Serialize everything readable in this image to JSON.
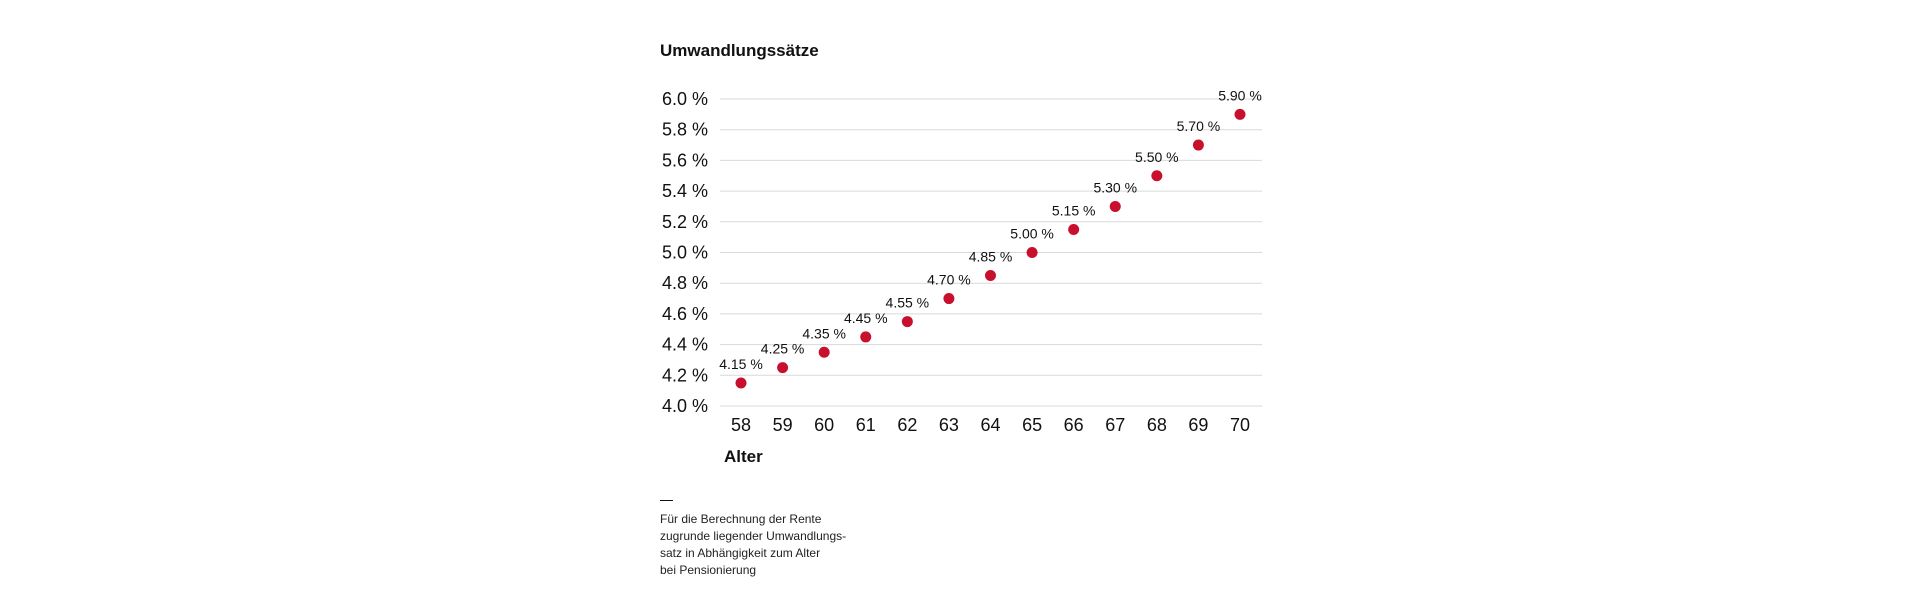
{
  "chart_data": {
    "type": "scatter",
    "title": "Umwandlungssätze",
    "xlabel": "Alter",
    "ylabel": "",
    "x": [
      58,
      59,
      60,
      61,
      62,
      63,
      64,
      65,
      66,
      67,
      68,
      69,
      70
    ],
    "y": [
      4.15,
      4.25,
      4.35,
      4.45,
      4.55,
      4.7,
      4.85,
      5.0,
      5.15,
      5.3,
      5.5,
      5.7,
      5.9
    ],
    "data_labels": [
      "4.15 %",
      "4.25 %",
      "4.35 %",
      "4.45 %",
      "4.55 %",
      "4.70 %",
      "4.85 %",
      "5.00 %",
      "5.15 %",
      "5.30 %",
      "5.50 %",
      "5.70 %",
      "5.90 %"
    ],
    "xticks": [
      "58",
      "59",
      "60",
      "61",
      "62",
      "63",
      "64",
      "65",
      "66",
      "67",
      "68",
      "69",
      "70"
    ],
    "yticks": [
      4.0,
      4.2,
      4.4,
      4.6,
      4.8,
      5.0,
      5.2,
      5.4,
      5.6,
      5.8,
      6.0
    ],
    "ytick_labels": [
      "4.0 %",
      "4.2 %",
      "4.4 %",
      "4.6 %",
      "4.8 %",
      "5.0 %",
      "5.2 %",
      "5.4 %",
      "5.6 %",
      "5.8 %",
      "6.0 %"
    ],
    "xlim": [
      58,
      70
    ],
    "ylim": [
      4.0,
      6.0
    ],
    "grid": "horizontal",
    "legend": "none",
    "marker_color": "#c8102e"
  },
  "footnote": {
    "dash": "—",
    "lines": [
      "Für die Berechnung der Rente",
      "zugrunde liegender Umwandlungs-",
      "satz in Abhängigkeit zum Alter",
      "bei Pensionierung"
    ]
  }
}
